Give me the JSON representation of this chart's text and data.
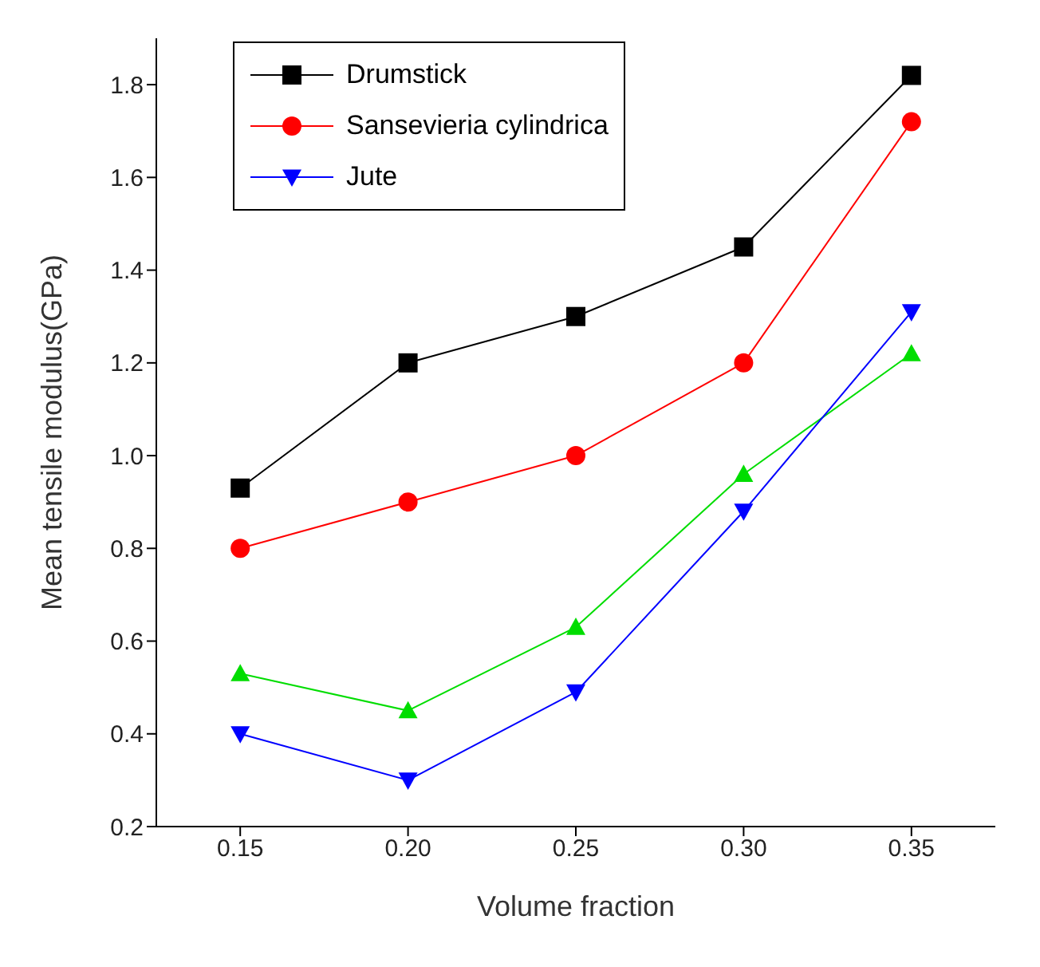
{
  "chart_data": {
    "type": "line",
    "xlabel": "Volume fraction",
    "ylabel": "Mean tensile modulus(GPa)",
    "x": [
      0.15,
      0.2,
      0.25,
      0.3,
      0.35
    ],
    "xlim": [
      0.125,
      0.375
    ],
    "xticks": [
      {
        "value": 0.15,
        "label": "0.15"
      },
      {
        "value": 0.2,
        "label": "0.20"
      },
      {
        "value": 0.25,
        "label": "0.25"
      },
      {
        "value": 0.3,
        "label": "0.30"
      },
      {
        "value": 0.35,
        "label": "0.35"
      }
    ],
    "ylim": [
      0.2,
      1.9
    ],
    "yticks": [
      {
        "value": 0.2,
        "label": "0.2"
      },
      {
        "value": 0.4,
        "label": "0.4"
      },
      {
        "value": 0.6,
        "label": "0.6"
      },
      {
        "value": 0.8,
        "label": "0.8"
      },
      {
        "value": 1.0,
        "label": "1.0"
      },
      {
        "value": 1.2,
        "label": "1.2"
      },
      {
        "value": 1.4,
        "label": "1.4"
      },
      {
        "value": 1.6,
        "label": "1.6"
      },
      {
        "value": 1.8,
        "label": "1.8"
      }
    ],
    "grid": false,
    "legend": "top left",
    "series": [
      {
        "name": "Drumstick",
        "color": "#000000",
        "marker": "square",
        "values": [
          0.93,
          1.2,
          1.3,
          1.45,
          1.82
        ]
      },
      {
        "name": "Sansevieria cylindrica",
        "color": "#ff0000",
        "marker": "circle",
        "values": [
          0.8,
          0.9,
          1.0,
          1.2,
          1.72
        ]
      },
      {
        "color": "#00dd00",
        "marker": "triangle",
        "values": [
          0.53,
          0.45,
          0.63,
          0.96,
          1.22
        ]
      },
      {
        "name": "Jute",
        "color": "#0000ff",
        "marker": "triangle-down",
        "values": [
          0.4,
          0.3,
          0.49,
          0.88,
          1.31
        ]
      }
    ]
  }
}
